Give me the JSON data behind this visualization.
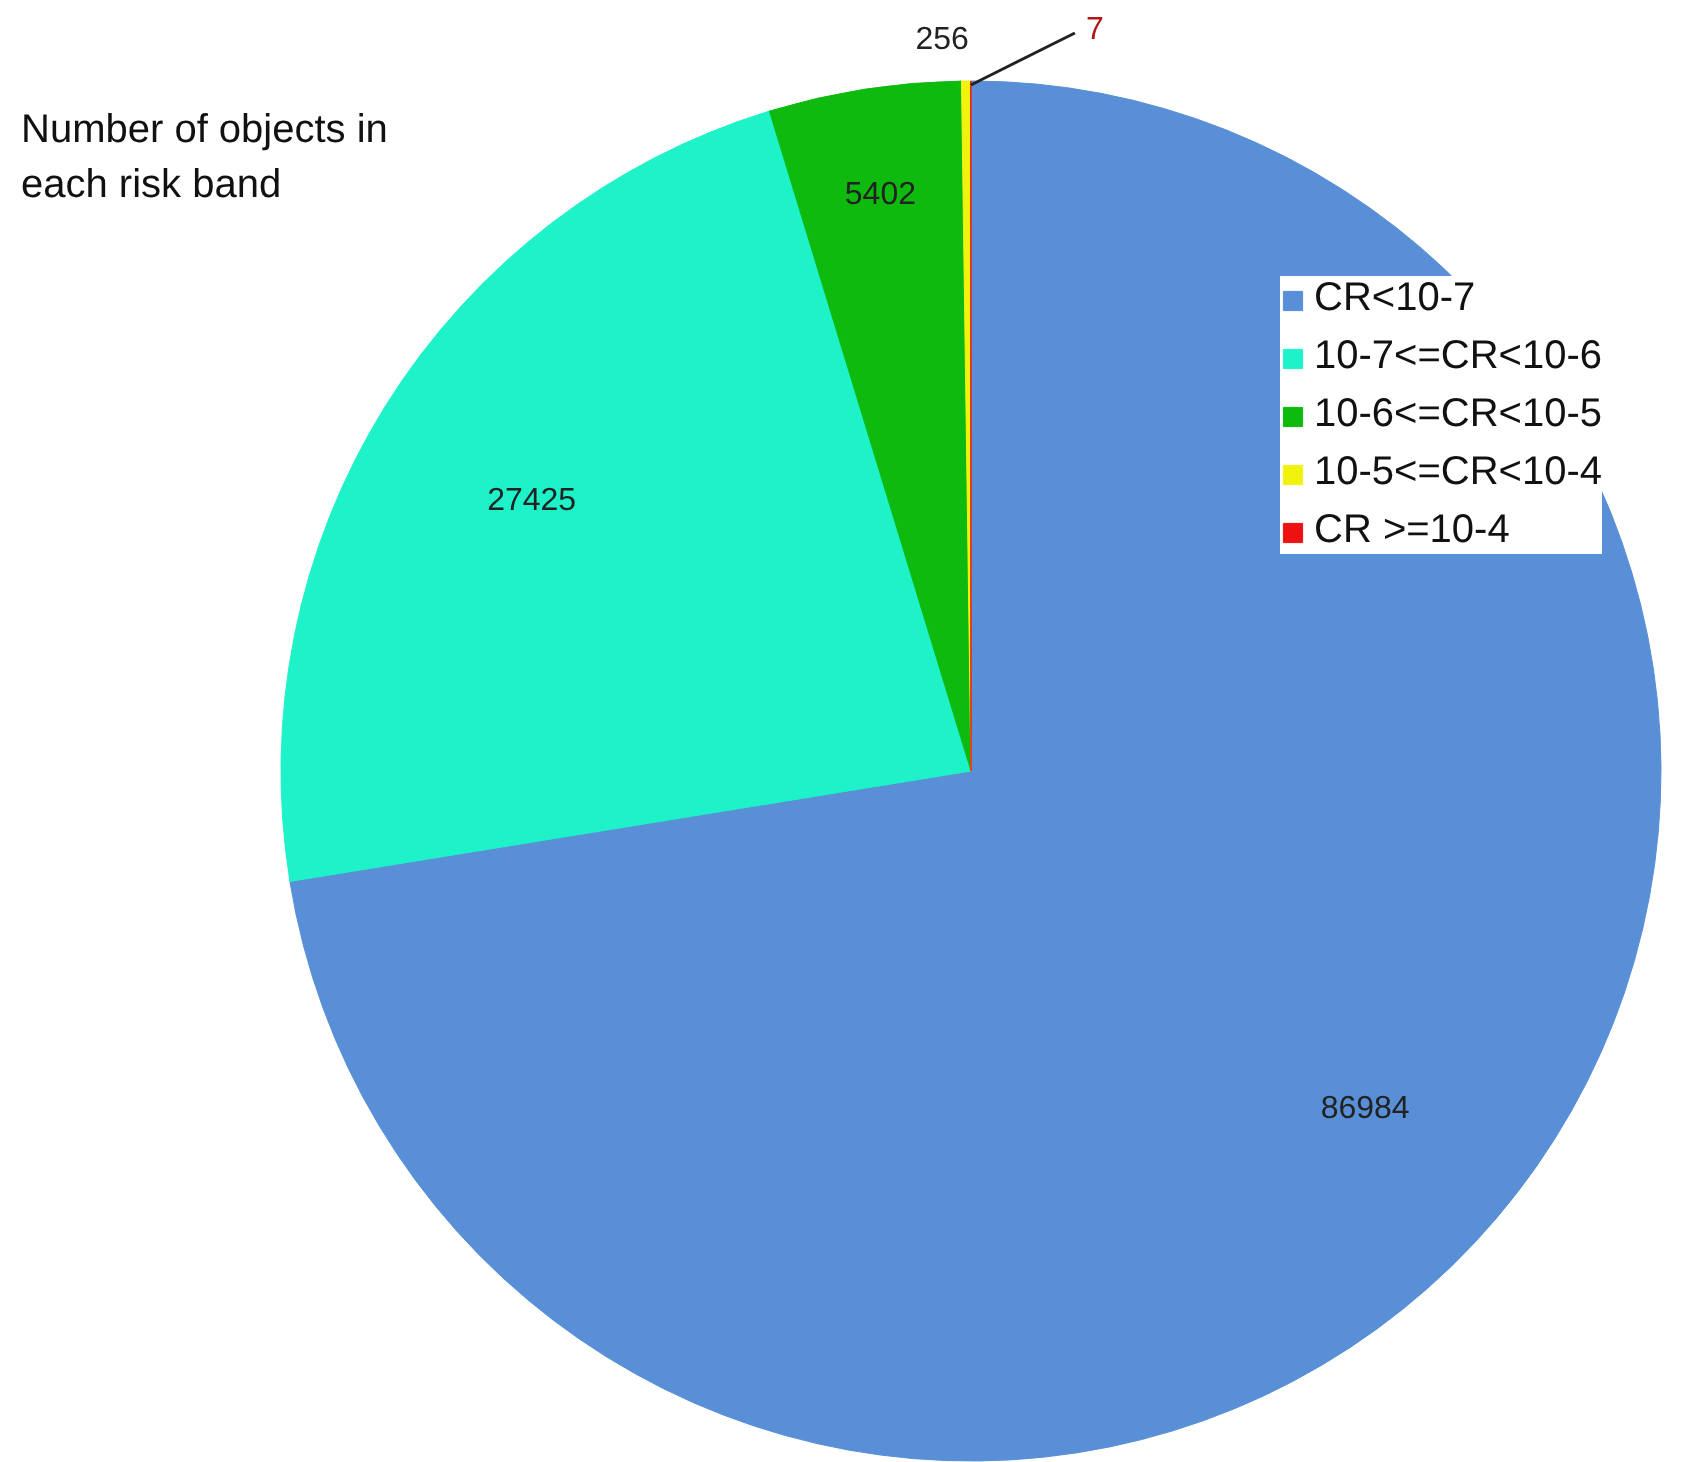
{
  "chart_data": {
    "type": "pie",
    "categories": [
      "CR<10-7",
      "10-7<=CR<10-6",
      "10-6<=CR<10-5",
      "10-5<=CR<10-4",
      "CR >=10-4"
    ],
    "values": [
      86984,
      27425,
      5402,
      256,
      7
    ],
    "colors": [
      "#588fd6",
      "#1ef2c8",
      "#0fba0f",
      "#f2f20f",
      "#ee1111"
    ],
    "data_labels": true,
    "legend": "top right",
    "annotations": [
      "Number of objects in\neach risk band"
    ]
  }
}
